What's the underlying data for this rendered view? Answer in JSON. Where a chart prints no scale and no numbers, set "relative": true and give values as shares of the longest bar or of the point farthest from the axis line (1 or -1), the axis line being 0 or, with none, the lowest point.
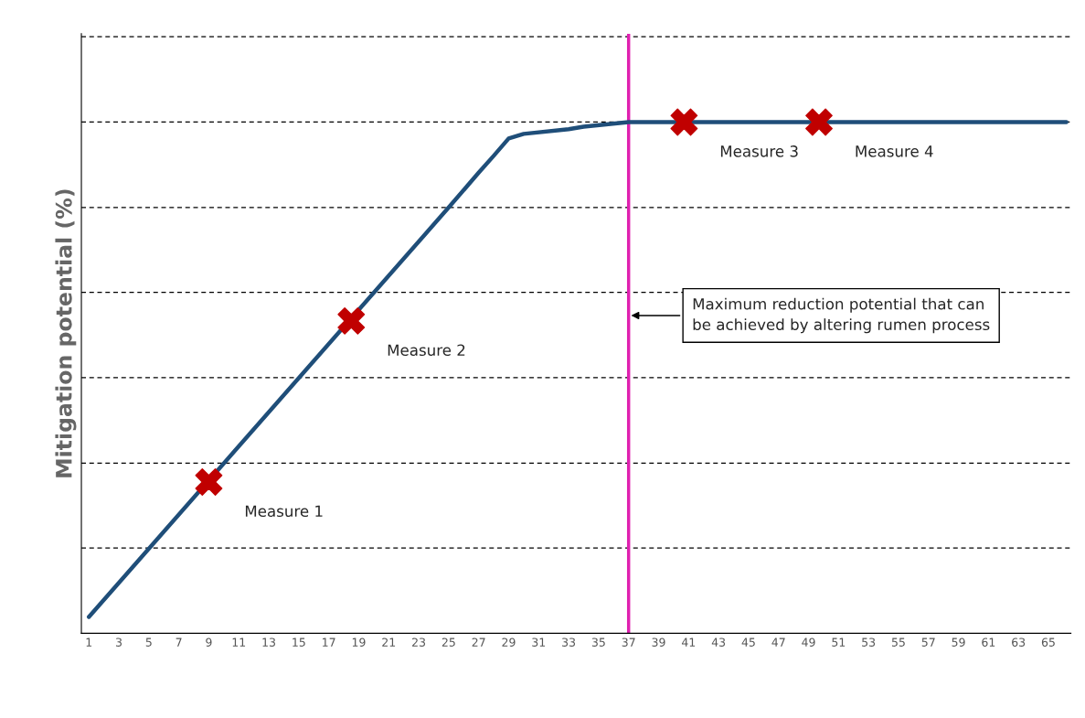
{
  "chart_data": {
    "type": "line",
    "ylabel": "Mitigation potential (%)",
    "relative": true,
    "xlim": [
      0.5,
      66.5
    ],
    "xticks": [
      1,
      3,
      5,
      7,
      9,
      11,
      13,
      15,
      17,
      19,
      21,
      23,
      25,
      27,
      29,
      31,
      33,
      35,
      37,
      39,
      41,
      43,
      45,
      47,
      49,
      51,
      53,
      55,
      57,
      59,
      61,
      63,
      65
    ],
    "series": [
      {
        "type": "line",
        "color": "#1f4e79",
        "marker": "none",
        "line_style": "solid",
        "x": [
          1,
          25,
          27,
          28,
          29,
          30,
          33,
          34,
          37,
          66.2
        ],
        "values": [
          0.032,
          0.833,
          0.901,
          0.934,
          0.968,
          0.977,
          0.986,
          0.991,
          1,
          1
        ]
      },
      {
        "type": "scatter",
        "color": "#c00000",
        "marker": "cross",
        "x": [
          9,
          18.5,
          40.7,
          49.7
        ],
        "values": [
          0.296,
          0.611,
          1,
          1
        ]
      }
    ],
    "ref_lines": [
      {
        "axis": "x",
        "value": 37,
        "color": "#e020b0",
        "line_style": "solid",
        "label": "Maximum reduction potential that can\nbe achieved by altering rumen process"
      },
      {
        "axis": "y",
        "value": 0.167,
        "color": "#000000",
        "line_style": "dashed"
      },
      {
        "axis": "y",
        "value": 0.333,
        "color": "#000000",
        "line_style": "dashed"
      },
      {
        "axis": "y",
        "value": 0.5,
        "color": "#000000",
        "line_style": "dashed"
      },
      {
        "axis": "y",
        "value": 0.667,
        "color": "#000000",
        "line_style": "dashed"
      },
      {
        "axis": "y",
        "value": 0.833,
        "color": "#000000",
        "line_style": "dashed"
      },
      {
        "axis": "y",
        "value": 1,
        "color": "#000000",
        "line_style": "dashed"
      },
      {
        "axis": "y",
        "value": 1.167,
        "color": "#000000",
        "line_style": "dashed"
      }
    ],
    "annotations": [
      {
        "text": "Measure 1",
        "x": 9,
        "y": 0.296
      },
      {
        "text": "Measure 2",
        "x": 18.5,
        "y": 0.611
      },
      {
        "text": "Measure 3",
        "x": 40.7,
        "y": 1
      },
      {
        "text": "Measure 4",
        "x": 49.7,
        "y": 1
      }
    ],
    "grid": false,
    "legend": false
  }
}
